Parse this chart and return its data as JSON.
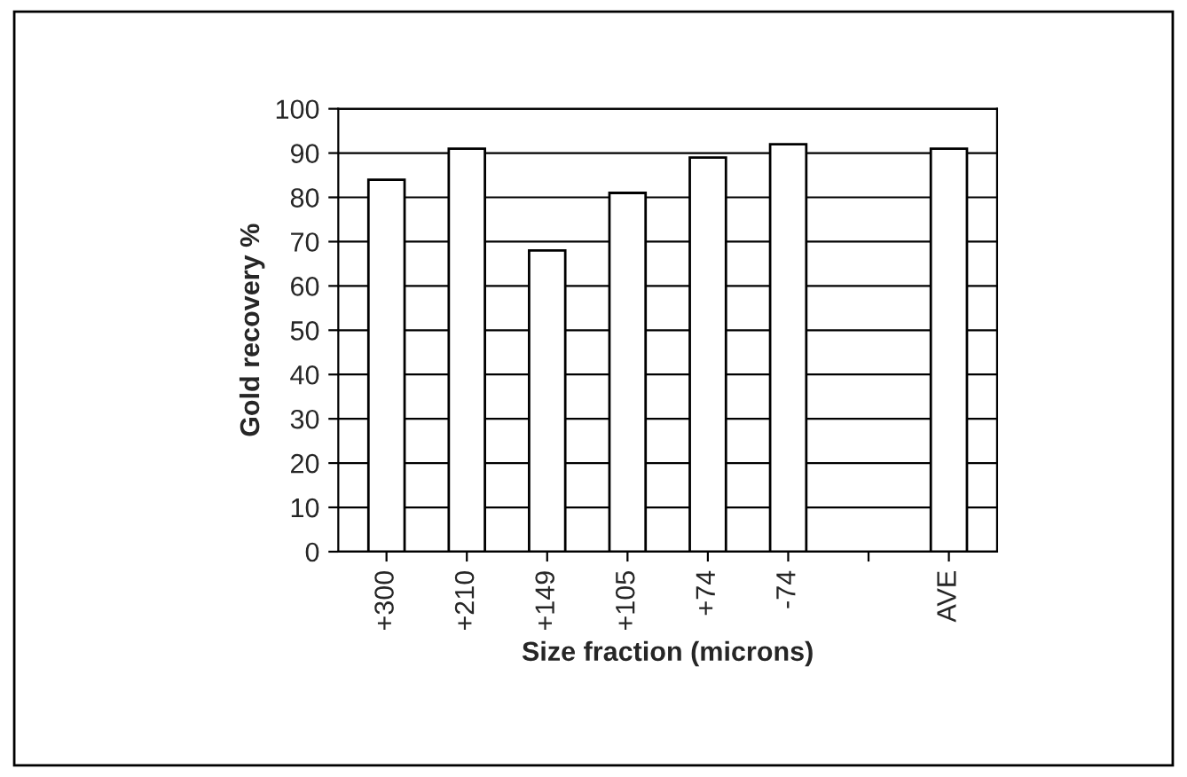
{
  "chart_data": {
    "type": "bar",
    "xlabel": "Size fraction (microns)",
    "ylabel": "Gold recovery %",
    "categories": [
      "+300",
      "+210",
      "+149",
      "+105",
      "+74",
      "-74",
      null,
      "AVE"
    ],
    "values": [
      84,
      91,
      68,
      81,
      89,
      92,
      null,
      91
    ],
    "color": "#ffffff",
    "ylim": [
      0,
      100
    ],
    "yticks": [
      0,
      10,
      20,
      30,
      40,
      50,
      60,
      70,
      80,
      90,
      100
    ],
    "grid": "y"
  }
}
